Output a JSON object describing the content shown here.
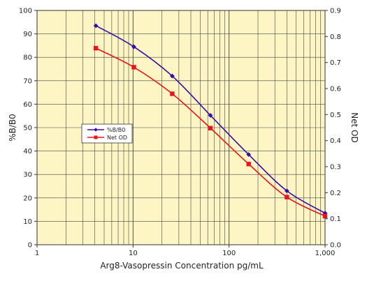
{
  "chart_data": {
    "type": "line",
    "xlabel": "Arg8-Vasopressin Concentration pg/mL",
    "ylabel_left": "%B/B0",
    "ylabel_right": "Net OD",
    "x_scale": "log",
    "xlim": [
      1,
      1000
    ],
    "ylim_left": [
      0,
      100
    ],
    "ylim_right": [
      0,
      0.9
    ],
    "x_ticks": [
      1,
      10,
      100,
      1000
    ],
    "x_tick_labels": [
      "1",
      "10",
      "100",
      "1,000"
    ],
    "y_left_ticks": [
      0,
      10,
      20,
      30,
      40,
      50,
      60,
      70,
      80,
      90,
      100
    ],
    "y_left_tick_labels": [
      "0",
      "10",
      "20",
      "30",
      "40",
      "50",
      "60",
      "70",
      "80",
      "90",
      "100"
    ],
    "y_right_ticks": [
      0,
      0.1,
      0.2,
      0.3,
      0.4,
      0.5,
      0.6,
      0.7,
      0.8,
      0.9
    ],
    "y_right_tick_labels": [
      "0.0",
      "0.1",
      "0.2",
      "0.3",
      "0.4",
      "0.5",
      "0.6",
      "0.7",
      "0.8",
      "0.9"
    ],
    "grid": true,
    "legend_position": "left-middle",
    "series": [
      {
        "name": "%B/B0",
        "axis": "left",
        "color": "#3a0ca3",
        "marker": "diamond",
        "x": [
          4.1,
          10.2,
          25.6,
          64,
          160,
          400,
          1000
        ],
        "y": [
          93.5,
          84.5,
          72,
          55.2,
          38.5,
          23,
          13.5
        ]
      },
      {
        "name": "Net OD",
        "axis": "right",
        "color": "#e8141e",
        "marker": "square",
        "x": [
          4.1,
          10.2,
          25.6,
          64,
          160,
          400,
          1000
        ],
        "y": [
          0.755,
          0.682,
          0.58,
          0.448,
          0.31,
          0.183,
          0.11
        ]
      }
    ],
    "background_color": "#fdf5c4",
    "grid_color": "#444444"
  }
}
